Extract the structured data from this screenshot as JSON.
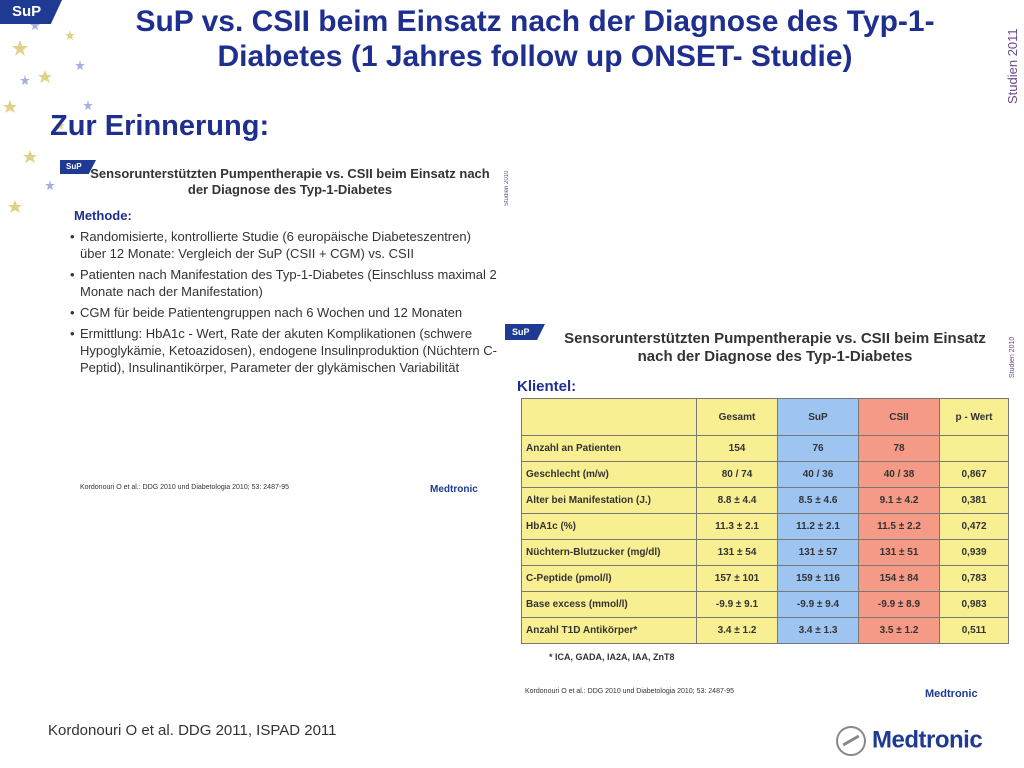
{
  "badge": "SuP",
  "title": "SuP vs. CSII beim Einsatz nach der Diagnose des Typ-1-Diabetes (1 Jahres follow up ONSET- Studie)",
  "side_label": "Studien 2011",
  "subtitle": "Zur Erinnerung:",
  "slide1": {
    "badge": "SuP",
    "title": "Sensorunterstützten Pumpentherapie vs. CSII beim Einsatz nach der Diagnose des Typ-1-Diabetes",
    "side_label": "Studien 2010",
    "section": "Methode:",
    "bullets": [
      "Randomisierte, kontrollierte Studie (6 europäische Diabeteszentren) über 12 Monate: Vergleich der SuP (CSII + CGM) vs. CSII",
      "Patienten nach Manifestation des Typ-1-Diabetes (Einschluss maximal 2 Monate nach der Manifestation)",
      "CGM für beide Patientengruppen nach 6 Wochen und 12 Monaten",
      "Ermittlung: HbA1c - Wert, Rate der akuten Komplikationen (schwere Hypoglykämie, Ketoazidosen), endogene Insulinproduktion (Nüchtern C-Peptid), Insulinantikörper, Parameter der glykämischen Variabilität"
    ],
    "reference": "Kordonouri O et al.: DDG 2010 und Diabetologia 2010; 53: 2487-95",
    "logo": "Medtronic"
  },
  "slide2": {
    "badge": "SuP",
    "title": "Sensorunterstützten Pumpentherapie vs. CSII beim Einsatz nach der Diagnose des Typ-1-Diabetes",
    "side_label": "Studien 2010",
    "section": "Klientel:",
    "headers": [
      "",
      "Gesamt",
      "SuP",
      "CSII",
      "p - Wert"
    ],
    "rows": [
      [
        "Anzahl an Patienten",
        "154",
        "76",
        "78",
        ""
      ],
      [
        "Geschlecht (m/w)",
        "80 / 74",
        "40 / 36",
        "40 / 38",
        "0,867"
      ],
      [
        "Alter bei Manifestation (J.)",
        "8.8 ± 4.4",
        "8.5 ± 4.6",
        "9.1 ± 4.2",
        "0,381"
      ],
      [
        "HbA1c (%)",
        "11.3 ± 2.1",
        "11.2 ± 2.1",
        "11.5 ± 2.2",
        "0,472"
      ],
      [
        "Nüchtern-Blutzucker (mg/dl)",
        "131 ± 54",
        "131 ± 57",
        "131 ± 51",
        "0,939"
      ],
      [
        "C-Peptide (pmol/l)",
        "157 ± 101",
        "159 ± 116",
        "154 ± 84",
        "0,783"
      ],
      [
        "Base excess (mmol/l)",
        "-9.9 ± 9.1",
        "-9.9 ± 9.4",
        "-9.9 ± 8.9",
        "0,983"
      ],
      [
        "Anzahl T1D Antikörper*",
        "3.4 ± 1.2",
        "3.4 ± 1.3",
        "3.5 ± 1.2",
        "0,511"
      ]
    ],
    "footnote": "* ICA, GADA, IA2A, IAA, ZnT8",
    "reference": "Kordonouri O et al.: DDG 2010 und Diabetologia 2010; 53: 2487-95",
    "logo": "Medtronic"
  },
  "bottom_reference": "Kordonouri O et al. DDG 2011, ISPAD 2011",
  "brand_logo": "Medtronic",
  "colors": {
    "title": "#1f2f8f",
    "badge": "#1f3a93",
    "yellow": "#f7ef92",
    "blue": "#9ec5f2",
    "red": "#f49a86"
  }
}
